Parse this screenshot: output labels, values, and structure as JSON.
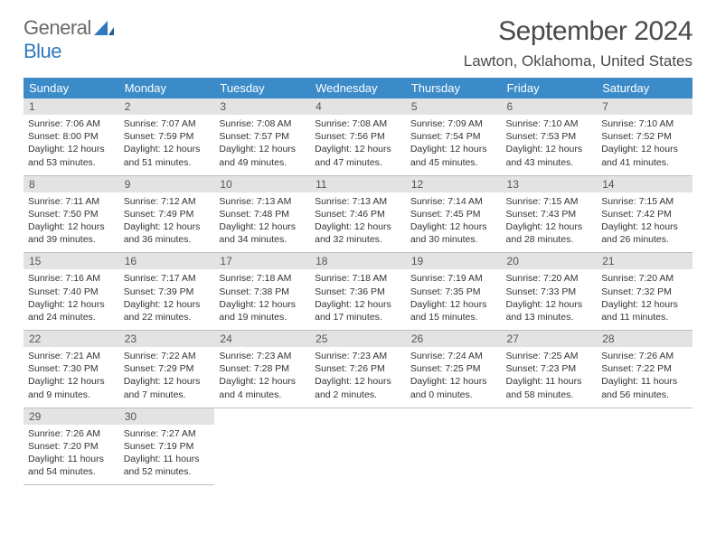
{
  "brand": {
    "part1": "General",
    "part2": "Blue"
  },
  "title": "September 2024",
  "location": "Lawton, Oklahoma, United States",
  "colors": {
    "header_bg": "#3b8bc9",
    "header_fg": "#ffffff",
    "daynum_bg": "#e3e3e3",
    "body_text": "#333333",
    "logo_grey": "#6a6a6a",
    "logo_blue": "#2f7abf"
  },
  "weekdays": [
    "Sunday",
    "Monday",
    "Tuesday",
    "Wednesday",
    "Thursday",
    "Friday",
    "Saturday"
  ],
  "weeks": [
    [
      {
        "n": "1",
        "sr": "Sunrise: 7:06 AM",
        "ss": "Sunset: 8:00 PM",
        "dl1": "Daylight: 12 hours",
        "dl2": "and 53 minutes."
      },
      {
        "n": "2",
        "sr": "Sunrise: 7:07 AM",
        "ss": "Sunset: 7:59 PM",
        "dl1": "Daylight: 12 hours",
        "dl2": "and 51 minutes."
      },
      {
        "n": "3",
        "sr": "Sunrise: 7:08 AM",
        "ss": "Sunset: 7:57 PM",
        "dl1": "Daylight: 12 hours",
        "dl2": "and 49 minutes."
      },
      {
        "n": "4",
        "sr": "Sunrise: 7:08 AM",
        "ss": "Sunset: 7:56 PM",
        "dl1": "Daylight: 12 hours",
        "dl2": "and 47 minutes."
      },
      {
        "n": "5",
        "sr": "Sunrise: 7:09 AM",
        "ss": "Sunset: 7:54 PM",
        "dl1": "Daylight: 12 hours",
        "dl2": "and 45 minutes."
      },
      {
        "n": "6",
        "sr": "Sunrise: 7:10 AM",
        "ss": "Sunset: 7:53 PM",
        "dl1": "Daylight: 12 hours",
        "dl2": "and 43 minutes."
      },
      {
        "n": "7",
        "sr": "Sunrise: 7:10 AM",
        "ss": "Sunset: 7:52 PM",
        "dl1": "Daylight: 12 hours",
        "dl2": "and 41 minutes."
      }
    ],
    [
      {
        "n": "8",
        "sr": "Sunrise: 7:11 AM",
        "ss": "Sunset: 7:50 PM",
        "dl1": "Daylight: 12 hours",
        "dl2": "and 39 minutes."
      },
      {
        "n": "9",
        "sr": "Sunrise: 7:12 AM",
        "ss": "Sunset: 7:49 PM",
        "dl1": "Daylight: 12 hours",
        "dl2": "and 36 minutes."
      },
      {
        "n": "10",
        "sr": "Sunrise: 7:13 AM",
        "ss": "Sunset: 7:48 PM",
        "dl1": "Daylight: 12 hours",
        "dl2": "and 34 minutes."
      },
      {
        "n": "11",
        "sr": "Sunrise: 7:13 AM",
        "ss": "Sunset: 7:46 PM",
        "dl1": "Daylight: 12 hours",
        "dl2": "and 32 minutes."
      },
      {
        "n": "12",
        "sr": "Sunrise: 7:14 AM",
        "ss": "Sunset: 7:45 PM",
        "dl1": "Daylight: 12 hours",
        "dl2": "and 30 minutes."
      },
      {
        "n": "13",
        "sr": "Sunrise: 7:15 AM",
        "ss": "Sunset: 7:43 PM",
        "dl1": "Daylight: 12 hours",
        "dl2": "and 28 minutes."
      },
      {
        "n": "14",
        "sr": "Sunrise: 7:15 AM",
        "ss": "Sunset: 7:42 PM",
        "dl1": "Daylight: 12 hours",
        "dl2": "and 26 minutes."
      }
    ],
    [
      {
        "n": "15",
        "sr": "Sunrise: 7:16 AM",
        "ss": "Sunset: 7:40 PM",
        "dl1": "Daylight: 12 hours",
        "dl2": "and 24 minutes."
      },
      {
        "n": "16",
        "sr": "Sunrise: 7:17 AM",
        "ss": "Sunset: 7:39 PM",
        "dl1": "Daylight: 12 hours",
        "dl2": "and 22 minutes."
      },
      {
        "n": "17",
        "sr": "Sunrise: 7:18 AM",
        "ss": "Sunset: 7:38 PM",
        "dl1": "Daylight: 12 hours",
        "dl2": "and 19 minutes."
      },
      {
        "n": "18",
        "sr": "Sunrise: 7:18 AM",
        "ss": "Sunset: 7:36 PM",
        "dl1": "Daylight: 12 hours",
        "dl2": "and 17 minutes."
      },
      {
        "n": "19",
        "sr": "Sunrise: 7:19 AM",
        "ss": "Sunset: 7:35 PM",
        "dl1": "Daylight: 12 hours",
        "dl2": "and 15 minutes."
      },
      {
        "n": "20",
        "sr": "Sunrise: 7:20 AM",
        "ss": "Sunset: 7:33 PM",
        "dl1": "Daylight: 12 hours",
        "dl2": "and 13 minutes."
      },
      {
        "n": "21",
        "sr": "Sunrise: 7:20 AM",
        "ss": "Sunset: 7:32 PM",
        "dl1": "Daylight: 12 hours",
        "dl2": "and 11 minutes."
      }
    ],
    [
      {
        "n": "22",
        "sr": "Sunrise: 7:21 AM",
        "ss": "Sunset: 7:30 PM",
        "dl1": "Daylight: 12 hours",
        "dl2": "and 9 minutes."
      },
      {
        "n": "23",
        "sr": "Sunrise: 7:22 AM",
        "ss": "Sunset: 7:29 PM",
        "dl1": "Daylight: 12 hours",
        "dl2": "and 7 minutes."
      },
      {
        "n": "24",
        "sr": "Sunrise: 7:23 AM",
        "ss": "Sunset: 7:28 PM",
        "dl1": "Daylight: 12 hours",
        "dl2": "and 4 minutes."
      },
      {
        "n": "25",
        "sr": "Sunrise: 7:23 AM",
        "ss": "Sunset: 7:26 PM",
        "dl1": "Daylight: 12 hours",
        "dl2": "and 2 minutes."
      },
      {
        "n": "26",
        "sr": "Sunrise: 7:24 AM",
        "ss": "Sunset: 7:25 PM",
        "dl1": "Daylight: 12 hours",
        "dl2": "and 0 minutes."
      },
      {
        "n": "27",
        "sr": "Sunrise: 7:25 AM",
        "ss": "Sunset: 7:23 PM",
        "dl1": "Daylight: 11 hours",
        "dl2": "and 58 minutes."
      },
      {
        "n": "28",
        "sr": "Sunrise: 7:26 AM",
        "ss": "Sunset: 7:22 PM",
        "dl1": "Daylight: 11 hours",
        "dl2": "and 56 minutes."
      }
    ],
    [
      {
        "n": "29",
        "sr": "Sunrise: 7:26 AM",
        "ss": "Sunset: 7:20 PM",
        "dl1": "Daylight: 11 hours",
        "dl2": "and 54 minutes."
      },
      {
        "n": "30",
        "sr": "Sunrise: 7:27 AM",
        "ss": "Sunset: 7:19 PM",
        "dl1": "Daylight: 11 hours",
        "dl2": "and 52 minutes."
      },
      null,
      null,
      null,
      null,
      null
    ]
  ]
}
